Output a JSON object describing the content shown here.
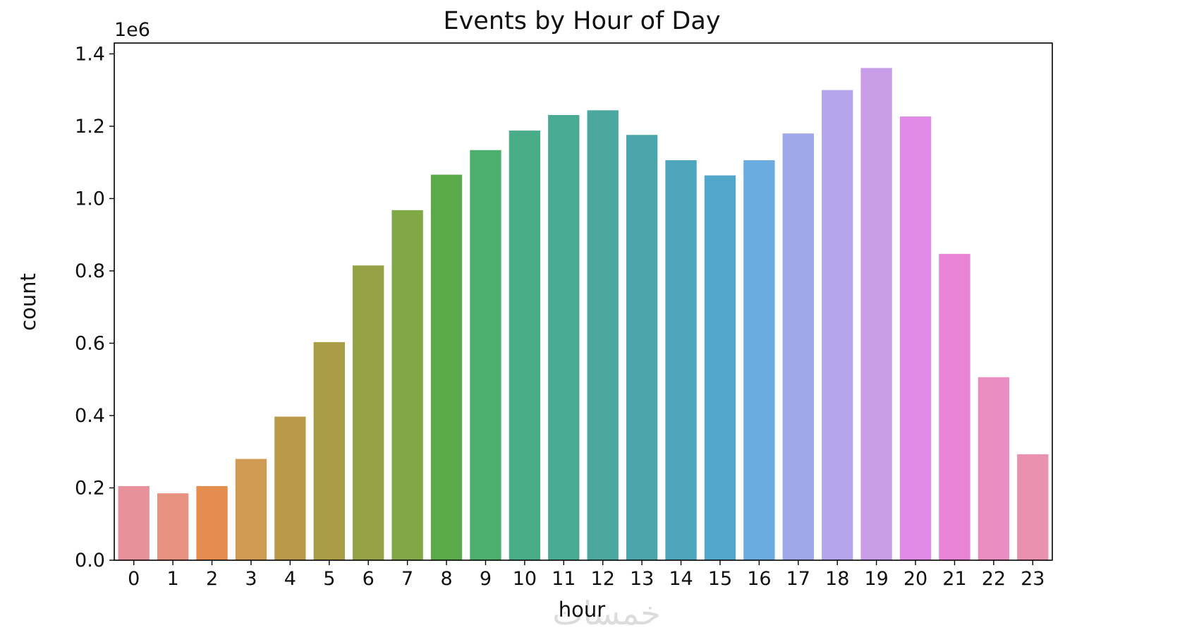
{
  "chart_data": {
    "type": "bar",
    "title": "Events by Hour of Day",
    "xlabel": "hour",
    "ylabel": "count",
    "y_offset_label": "1e6",
    "ylim": [
      0,
      1.43
    ],
    "y_ticks": [
      "0.0",
      "0.2",
      "0.4",
      "0.6",
      "0.8",
      "1.0",
      "1.2",
      "1.4"
    ],
    "y_tick_values": [
      0.0,
      0.2,
      0.4,
      0.6,
      0.8,
      1.0,
      1.2,
      1.4
    ],
    "grid": false,
    "categories": [
      "0",
      "1",
      "2",
      "3",
      "4",
      "5",
      "6",
      "7",
      "8",
      "9",
      "10",
      "11",
      "12",
      "13",
      "14",
      "15",
      "16",
      "17",
      "18",
      "19",
      "20",
      "21",
      "22",
      "23"
    ],
    "values": [
      0.205,
      0.185,
      0.205,
      0.28,
      0.397,
      0.603,
      0.815,
      0.968,
      1.066,
      1.134,
      1.188,
      1.231,
      1.244,
      1.176,
      1.106,
      1.064,
      1.106,
      1.18,
      1.3,
      1.361,
      1.227,
      0.847,
      0.506,
      0.293
    ],
    "colors": [
      "#e8919a",
      "#e89282",
      "#e38d4e",
      "#cf9a51",
      "#b99a4b",
      "#a89d45",
      "#94a245",
      "#80a846",
      "#5aaa4a",
      "#4caf6c",
      "#4aad8a",
      "#4aab95",
      "#4aa8a0",
      "#4aa6ab",
      "#4da6bc",
      "#51a8cb",
      "#6aace0",
      "#9fa8e8",
      "#b5a6eb",
      "#c99de8",
      "#e08be6",
      "#e883d6",
      "#ea8dc0",
      "#e991ae"
    ]
  },
  "watermark": "خمسات"
}
